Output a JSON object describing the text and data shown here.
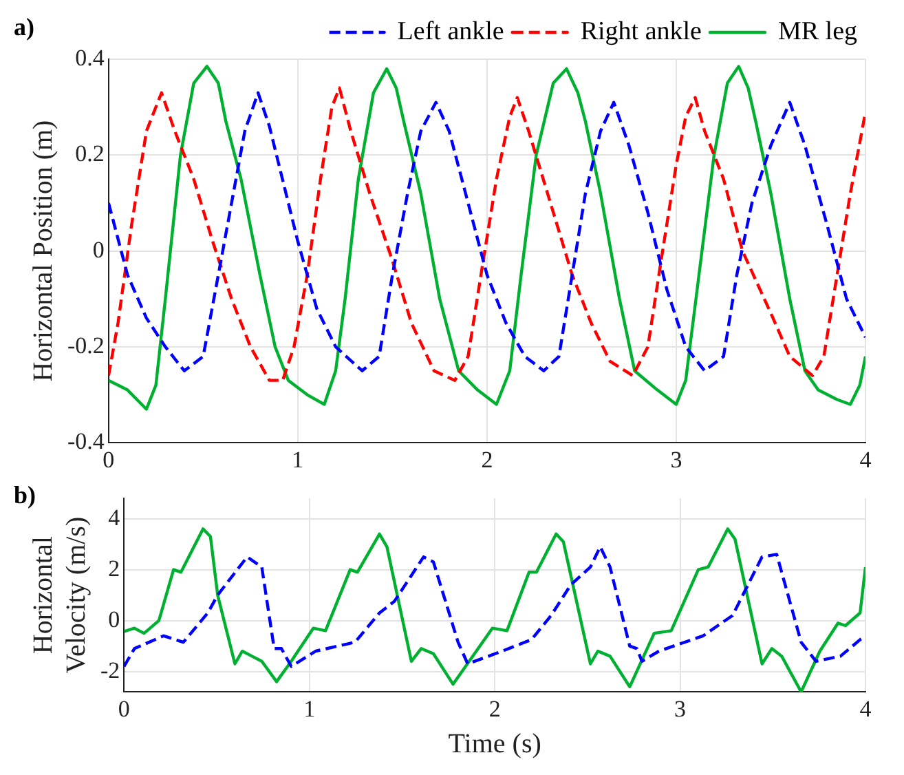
{
  "chart_data": [
    {
      "type": "line",
      "annotations": [
        "a)"
      ],
      "ylabel": "Horizontal Position (m)",
      "xlim": [
        0,
        4
      ],
      "xticks": [
        0,
        1,
        2,
        3,
        4
      ],
      "ylim": [
        -0.4,
        0.4
      ],
      "yticks": [
        -0.4,
        -0.2,
        0,
        0.2,
        0.4
      ],
      "grid": true,
      "legend": "top",
      "marker": "none",
      "series": [
        {
          "name": "Left ankle",
          "color": "#0000ff",
          "line_style": "dashed",
          "x": [
            0,
            0.1,
            0.2,
            0.3,
            0.4,
            0.5,
            0.58,
            0.65,
            0.72,
            0.79,
            0.85,
            0.9,
            1.0,
            1.1,
            1.2,
            1.34,
            1.43,
            1.5,
            1.58,
            1.65,
            1.73,
            1.8,
            1.9,
            2.0,
            2.1,
            2.2,
            2.3,
            2.38,
            2.45,
            2.52,
            2.6,
            2.67,
            2.75,
            2.85,
            2.95,
            3.05,
            3.15,
            3.25,
            3.32,
            3.4,
            3.5,
            3.6,
            3.68,
            3.8,
            3.9,
            4.0
          ],
          "values": [
            0.1,
            -0.05,
            -0.14,
            -0.2,
            -0.25,
            -0.22,
            -0.05,
            0.1,
            0.25,
            0.33,
            0.26,
            0.18,
            0.02,
            -0.12,
            -0.2,
            -0.25,
            -0.22,
            -0.05,
            0.12,
            0.25,
            0.31,
            0.25,
            0.1,
            -0.05,
            -0.15,
            -0.22,
            -0.25,
            -0.22,
            -0.05,
            0.12,
            0.25,
            0.31,
            0.22,
            0.08,
            -0.08,
            -0.2,
            -0.25,
            -0.22,
            -0.05,
            0.1,
            0.22,
            0.31,
            0.22,
            0.05,
            -0.1,
            -0.18
          ]
        },
        {
          "name": "Right ankle",
          "color": "#ff0000",
          "line_style": "dashed",
          "x": [
            0,
            0.05,
            0.12,
            0.2,
            0.28,
            0.35,
            0.45,
            0.55,
            0.65,
            0.75,
            0.85,
            0.92,
            0.98,
            1.05,
            1.12,
            1.18,
            1.22,
            1.28,
            1.38,
            1.5,
            1.6,
            1.72,
            1.83,
            1.9,
            1.98,
            2.05,
            2.12,
            2.16,
            2.22,
            2.32,
            2.45,
            2.55,
            2.65,
            2.77,
            2.85,
            2.92,
            3.0,
            3.05,
            3.1,
            3.15,
            3.25,
            3.35,
            3.5,
            3.6,
            3.72,
            3.78,
            3.85,
            3.92,
            4.0
          ],
          "values": [
            -0.26,
            -0.15,
            0.05,
            0.25,
            0.33,
            0.25,
            0.15,
            0.02,
            -0.1,
            -0.2,
            -0.27,
            -0.27,
            -0.2,
            -0.05,
            0.15,
            0.3,
            0.34,
            0.25,
            0.12,
            -0.02,
            -0.15,
            -0.25,
            -0.27,
            -0.22,
            -0.02,
            0.15,
            0.28,
            0.32,
            0.25,
            0.12,
            -0.05,
            -0.15,
            -0.23,
            -0.26,
            -0.2,
            -0.02,
            0.18,
            0.28,
            0.32,
            0.25,
            0.15,
            0.0,
            -0.13,
            -0.22,
            -0.26,
            -0.22,
            -0.05,
            0.12,
            0.29
          ]
        },
        {
          "name": "MR leg",
          "color": "#00b030",
          "line_style": "solid",
          "x": [
            0,
            0.1,
            0.2,
            0.25,
            0.3,
            0.38,
            0.45,
            0.52,
            0.58,
            0.62,
            0.7,
            0.8,
            0.88,
            0.95,
            1.05,
            1.14,
            1.2,
            1.25,
            1.32,
            1.4,
            1.47,
            1.52,
            1.56,
            1.65,
            1.75,
            1.85,
            1.95,
            2.05,
            2.12,
            2.18,
            2.26,
            2.35,
            2.42,
            2.48,
            2.52,
            2.6,
            2.7,
            2.78,
            2.9,
            3.0,
            3.05,
            3.12,
            3.2,
            3.27,
            3.33,
            3.38,
            3.42,
            3.5,
            3.6,
            3.68,
            3.75,
            3.85,
            3.92,
            3.97,
            4.0
          ],
          "values": [
            -0.27,
            -0.29,
            -0.33,
            -0.28,
            -0.1,
            0.2,
            0.35,
            0.385,
            0.35,
            0.27,
            0.15,
            -0.05,
            -0.2,
            -0.27,
            -0.3,
            -0.32,
            -0.25,
            -0.1,
            0.15,
            0.33,
            0.38,
            0.34,
            0.27,
            0.12,
            -0.1,
            -0.25,
            -0.29,
            -0.32,
            -0.25,
            -0.05,
            0.2,
            0.35,
            0.38,
            0.33,
            0.27,
            0.12,
            -0.1,
            -0.25,
            -0.29,
            -0.32,
            -0.27,
            -0.05,
            0.2,
            0.35,
            0.385,
            0.34,
            0.27,
            0.12,
            -0.1,
            -0.25,
            -0.29,
            -0.31,
            -0.32,
            -0.28,
            -0.22
          ]
        }
      ]
    },
    {
      "type": "line",
      "annotations": [
        "b)"
      ],
      "xlabel": "Time (s)",
      "ylabel": "Horizontal Velocity (m/s)",
      "xlim": [
        0,
        4
      ],
      "xticks": [
        0,
        1,
        2,
        3,
        4
      ],
      "ylim": [
        -2.8,
        4.8
      ],
      "yticks": [
        -2,
        0,
        2,
        4
      ],
      "grid": true,
      "marker": "none",
      "series": [
        {
          "color": "#0000ff",
          "line_style": "dashed",
          "x": [
            0,
            0.056,
            0.214,
            0.32,
            0.452,
            0.505,
            0.664,
            0.743,
            0.81,
            0.849,
            0.902,
            1.034,
            1.246,
            1.378,
            1.458,
            1.616,
            1.669,
            1.802,
            1.854,
            2.04,
            2.198,
            2.304,
            2.41,
            2.516,
            2.569,
            2.622,
            2.728,
            2.767,
            2.794,
            2.886,
            3.124,
            3.283,
            3.442,
            3.521,
            3.653,
            3.733,
            3.865,
            3.971,
            4.0
          ],
          "values": [
            -1.8,
            -1.1,
            -0.6,
            -0.85,
            0.3,
            1.0,
            2.5,
            2.1,
            -1.1,
            -1.1,
            -1.8,
            -1.2,
            -0.85,
            0.3,
            0.75,
            2.5,
            2.3,
            -0.85,
            -1.7,
            -1.2,
            -0.75,
            0.2,
            1.4,
            2.1,
            2.9,
            2.1,
            -1.0,
            -1.1,
            -1.6,
            -1.2,
            -0.6,
            0.2,
            2.5,
            2.6,
            -0.85,
            -1.6,
            -1.4,
            -0.75,
            -0.65
          ]
        },
        {
          "color": "#00b030",
          "line_style": "solid",
          "x": [
            0,
            0.056,
            0.108,
            0.188,
            0.267,
            0.307,
            0.426,
            0.466,
            0.505,
            0.598,
            0.638,
            0.69,
            0.743,
            0.823,
            0.902,
            1.021,
            1.087,
            1.22,
            1.259,
            1.378,
            1.418,
            1.55,
            1.603,
            1.669,
            1.775,
            1.881,
            1.987,
            2.066,
            2.185,
            2.225,
            2.331,
            2.37,
            2.516,
            2.556,
            2.622,
            2.728,
            2.86,
            2.952,
            3.098,
            3.151,
            3.257,
            3.296,
            3.442,
            3.495,
            3.548,
            3.653,
            3.754,
            3.852,
            3.892,
            3.971,
            4.0
          ],
          "values": [
            -0.43,
            -0.3,
            -0.5,
            0,
            2.0,
            1.9,
            3.6,
            3.3,
            1.0,
            -1.7,
            -1.2,
            -1.4,
            -1.6,
            -2.4,
            -1.6,
            -0.3,
            -0.4,
            2.0,
            1.9,
            3.4,
            2.9,
            -1.6,
            -1.1,
            -1.3,
            -2.5,
            -1.4,
            -0.3,
            -0.4,
            1.9,
            1.9,
            3.4,
            3.1,
            -1.7,
            -1.2,
            -1.4,
            -2.6,
            -0.5,
            -0.4,
            2.0,
            2.1,
            3.6,
            3.2,
            -1.7,
            -1.1,
            -1.4,
            -2.8,
            -1.2,
            -0.1,
            -0.2,
            0.3,
            2.1
          ]
        }
      ]
    }
  ]
}
